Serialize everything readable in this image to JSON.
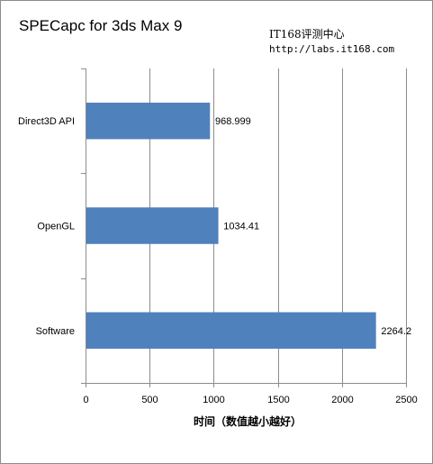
{
  "watermark": {
    "line1": "IT168评测中心",
    "line2": "http://labs.it168.com"
  },
  "chart_data": {
    "type": "bar",
    "orientation": "horizontal",
    "title": "SPECapc for 3ds Max 9",
    "xlabel": "时间（数值越小越好）",
    "ylabel": "",
    "categories": [
      "Direct3D API",
      "OpenGL",
      "Software"
    ],
    "values": [
      968.999,
      1034.41,
      2264.2
    ],
    "data_labels": [
      "968.999",
      "1034.41",
      "2264.2"
    ],
    "xlim": [
      0,
      2500
    ],
    "xticks": [
      "0",
      "500",
      "1000",
      "1500",
      "2000",
      "2500"
    ],
    "grid": true,
    "legend": "none",
    "bar_color": "#4f81bd"
  }
}
